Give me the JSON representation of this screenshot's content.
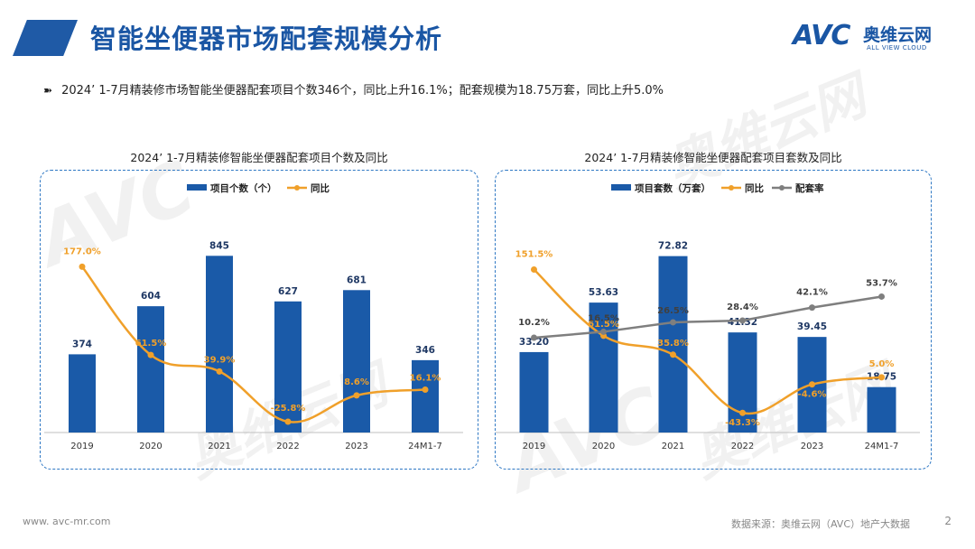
{
  "header": {
    "title": "智能坐便器市场配套规模分析",
    "logo_mark": "AVC",
    "logo_cn": "奥维云网",
    "logo_en": "ALL VIEW CLOUD"
  },
  "summary": {
    "arrow": "➽",
    "text": "2024’ 1-7月精装修市场智能坐便器配套项目个数346个，同比上升16.1%；配套规模为18.75万套，同比上升5.0%"
  },
  "watermark": {
    "mark": "AVC",
    "cn": "奥维云网",
    "en": "ALL VIEW CLOUD"
  },
  "colors": {
    "bar": "#1a5aa8",
    "yoy": "#f0a02a",
    "ratio": "#7f7f7f",
    "title": "#1a56a4",
    "border": "#2f78c4"
  },
  "chart_data": [
    {
      "type": "bar",
      "title": "2024’ 1-7月精装修智能坐便器配套项目个数及同比",
      "categories": [
        "2019",
        "2020",
        "2021",
        "2022",
        "2023",
        "24M1-7"
      ],
      "series": [
        {
          "name": "项目个数（个）",
          "kind": "bar",
          "values": [
            374,
            604,
            845,
            627,
            681,
            346
          ],
          "labels": [
            "374",
            "604",
            "845",
            "627",
            "681",
            "346"
          ]
        },
        {
          "name": "同比",
          "kind": "line",
          "values": [
            177.0,
            61.5,
            39.9,
            -25.8,
            8.6,
            16.1
          ],
          "labels": [
            "177.0%",
            "61.5%",
            "39.9%",
            "-25.8%",
            "8.6%",
            "16.1%"
          ]
        }
      ],
      "ylim_bar": [
        0,
        950
      ],
      "ylim_line": [
        -40,
        220
      ]
    },
    {
      "type": "bar",
      "title": "2024’ 1-7月精装修智能坐便器配套项目套数及同比",
      "categories": [
        "2019",
        "2020",
        "2021",
        "2022",
        "2023",
        "24M1-7"
      ],
      "series": [
        {
          "name": "项目套数（万套）",
          "kind": "bar",
          "values": [
            33.2,
            53.63,
            72.82,
            41.32,
            39.45,
            18.75
          ],
          "labels": [
            "33.20",
            "53.63",
            "72.82",
            "41.32",
            "39.45",
            "18.75"
          ]
        },
        {
          "name": "同比",
          "kind": "line",
          "values": [
            151.5,
            61.5,
            35.8,
            -43.3,
            -4.6,
            5.0
          ],
          "labels": [
            "151.5%",
            "61.5%",
            "35.8%",
            "-43.3%",
            "-4.6%",
            "5.0%"
          ]
        },
        {
          "name": "配套率",
          "kind": "line",
          "values": [
            10.2,
            16.5,
            26.5,
            28.4,
            42.1,
            53.7
          ],
          "labels": [
            "10.2%",
            "16.5%",
            "26.5%",
            "28.4%",
            "42.1%",
            "53.7%"
          ]
        }
      ],
      "ylim_bar": [
        0,
        82
      ],
      "ylim_line": [
        -70,
        200
      ],
      "ylim_ratio": [
        -90,
        120
      ]
    }
  ],
  "footer": {
    "website": "www. avc-mr.com",
    "source": "数据来源：奥维云网（AVC）地产大数据",
    "page": "2"
  }
}
